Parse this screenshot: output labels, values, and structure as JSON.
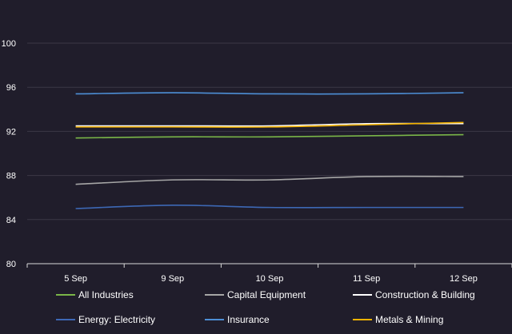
{
  "chart_data": {
    "type": "line",
    "categories": [
      "5 Sep",
      "9 Sep",
      "10 Sep",
      "11 Sep",
      "12 Sep"
    ],
    "ylim": [
      80,
      100
    ],
    "yticks": [
      80,
      84,
      88,
      92,
      96,
      100
    ],
    "grid": true,
    "legend_position": "bottom",
    "series": [
      {
        "name": "All Industries",
        "color": "#7ab648",
        "values": [
          91.4,
          91.5,
          91.5,
          91.6,
          91.7
        ]
      },
      {
        "name": "Capital Equipment",
        "color": "#a6a6a6",
        "values": [
          87.2,
          87.6,
          87.6,
          87.9,
          87.9
        ]
      },
      {
        "name": "Construction & Building",
        "color": "#ffffff",
        "values": [
          92.5,
          92.5,
          92.5,
          92.7,
          92.7
        ]
      },
      {
        "name": "Energy: Electricity",
        "color": "#3d68b5",
        "values": [
          85.0,
          85.3,
          85.1,
          85.1,
          85.1
        ]
      },
      {
        "name": "Insurance",
        "color": "#4d8fd6",
        "values": [
          95.4,
          95.5,
          95.4,
          95.4,
          95.5
        ]
      },
      {
        "name": "Metals & Mining",
        "color": "#f4b300",
        "values": [
          92.4,
          92.4,
          92.4,
          92.6,
          92.8
        ]
      }
    ]
  }
}
